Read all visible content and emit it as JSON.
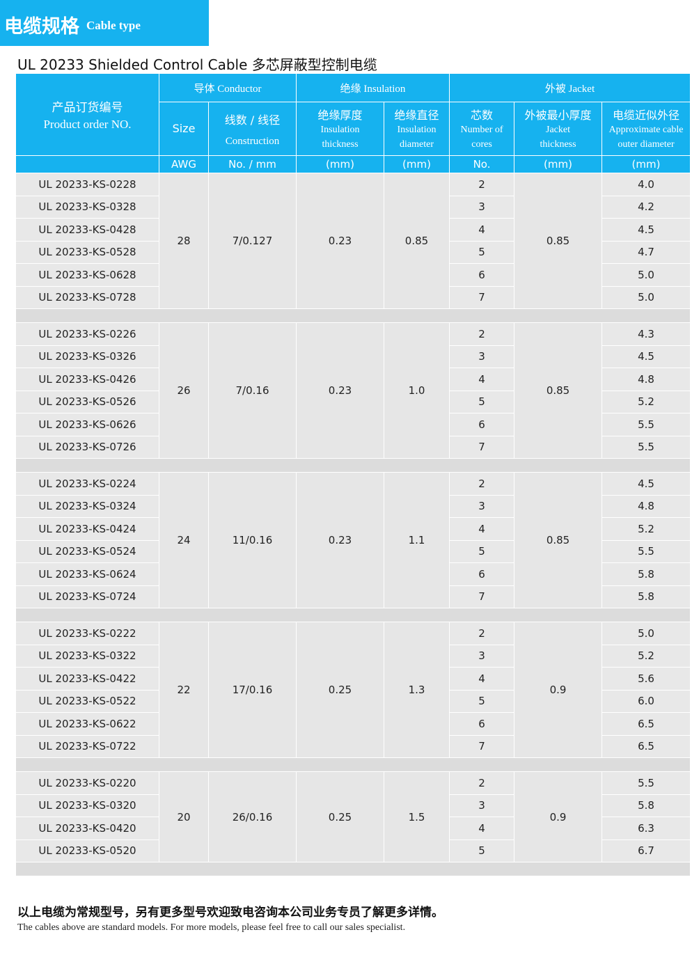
{
  "header": {
    "title_cn": "电缆规格",
    "title_en": "Cable type"
  },
  "table_title": "UL 20233 Shielded Control Cable 多芯屏蔽型控制电缆",
  "columns": {
    "product": {
      "cn": "产品订货编号",
      "en": "Product order NO."
    },
    "conductor": {
      "cn": "导体",
      "en": "Conductor"
    },
    "insulation": {
      "cn": "绝缘",
      "en": "Insulation"
    },
    "jacket": {
      "cn": "外被",
      "en": "Jacket"
    },
    "size": {
      "label": "Size",
      "unit": "AWG"
    },
    "construction": {
      "cn": "线数 / 线径",
      "en": "Construction",
      "unit": "No. / mm"
    },
    "ins_thickness": {
      "cn": "绝缘厚度",
      "en1": "Insulation",
      "en2": "thickness",
      "unit": "(mm)"
    },
    "ins_diameter": {
      "cn": "绝缘直径",
      "en1": "Insulation",
      "en2": "diameter",
      "unit": "(mm)"
    },
    "cores": {
      "cn": "芯数",
      "en1": "Number of",
      "en2": "cores",
      "unit": "No."
    },
    "jacket_thickness": {
      "cn": "外被最小厚度",
      "en1": "Jacket",
      "en2": "thickness",
      "unit": "(mm)"
    },
    "outer_diameter": {
      "cn": "电缆近似外径",
      "en1": "Approximate cable",
      "en2": "outer diameter",
      "unit": "(mm)"
    }
  },
  "groups": [
    {
      "size": "28",
      "construction": "7/0.127",
      "ins_thickness": "0.23",
      "ins_diameter": "0.85",
      "jacket": "0.85",
      "rows": [
        {
          "model": "UL 20233-KS-0228",
          "cores": "2",
          "od": "4.0"
        },
        {
          "model": "UL 20233-KS-0328",
          "cores": "3",
          "od": "4.2"
        },
        {
          "model": "UL 20233-KS-0428",
          "cores": "4",
          "od": "4.5"
        },
        {
          "model": "UL 20233-KS-0528",
          "cores": "5",
          "od": "4.7"
        },
        {
          "model": "UL 20233-KS-0628",
          "cores": "6",
          "od": "5.0"
        },
        {
          "model": "UL 20233-KS-0728",
          "cores": "7",
          "od": "5.0"
        }
      ]
    },
    {
      "size": "26",
      "construction": "7/0.16",
      "ins_thickness": "0.23",
      "ins_diameter": "1.0",
      "jacket": "0.85",
      "rows": [
        {
          "model": "UL 20233-KS-0226",
          "cores": "2",
          "od": "4.3"
        },
        {
          "model": "UL 20233-KS-0326",
          "cores": "3",
          "od": "4.5"
        },
        {
          "model": "UL 20233-KS-0426",
          "cores": "4",
          "od": "4.8"
        },
        {
          "model": "UL 20233-KS-0526",
          "cores": "5",
          "od": "5.2"
        },
        {
          "model": "UL 20233-KS-0626",
          "cores": "6",
          "od": "5.5"
        },
        {
          "model": "UL 20233-KS-0726",
          "cores": "7",
          "od": "5.5"
        }
      ]
    },
    {
      "size": "24",
      "construction": "11/0.16",
      "ins_thickness": "0.23",
      "ins_diameter": "1.1",
      "jacket": "0.85",
      "rows": [
        {
          "model": "UL 20233-KS-0224",
          "cores": "2",
          "od": "4.5"
        },
        {
          "model": "UL 20233-KS-0324",
          "cores": "3",
          "od": "4.8"
        },
        {
          "model": "UL 20233-KS-0424",
          "cores": "4",
          "od": "5.2"
        },
        {
          "model": "UL 20233-KS-0524",
          "cores": "5",
          "od": "5.5"
        },
        {
          "model": "UL 20233-KS-0624",
          "cores": "6",
          "od": "5.8"
        },
        {
          "model": "UL 20233-KS-0724",
          "cores": "7",
          "od": "5.8"
        }
      ]
    },
    {
      "size": "22",
      "construction": "17/0.16",
      "ins_thickness": "0.25",
      "ins_diameter": "1.3",
      "jacket": "0.9",
      "rows": [
        {
          "model": "UL 20233-KS-0222",
          "cores": "2",
          "od": "5.0"
        },
        {
          "model": "UL 20233-KS-0322",
          "cores": "3",
          "od": "5.2"
        },
        {
          "model": "UL 20233-KS-0422",
          "cores": "4",
          "od": "5.6"
        },
        {
          "model": "UL 20233-KS-0522",
          "cores": "5",
          "od": "6.0"
        },
        {
          "model": "UL 20233-KS-0622",
          "cores": "6",
          "od": "6.5"
        },
        {
          "model": "UL 20233-KS-0722",
          "cores": "7",
          "od": "6.5"
        }
      ]
    },
    {
      "size": "20",
      "construction": "26/0.16",
      "ins_thickness": "0.25",
      "ins_diameter": "1.5",
      "jacket": "0.9",
      "rows": [
        {
          "model": "UL 20233-KS-0220",
          "cores": "2",
          "od": "5.5"
        },
        {
          "model": "UL 20233-KS-0320",
          "cores": "3",
          "od": "5.8"
        },
        {
          "model": "UL 20233-KS-0420",
          "cores": "4",
          "od": "6.3"
        },
        {
          "model": "UL 20233-KS-0520",
          "cores": "5",
          "od": "6.7"
        }
      ]
    }
  ],
  "footer": {
    "note_cn": "以上电缆为常规型号，另有更多型号欢迎致电咨询本公司业务专员了解更多详情。",
    "note_en": "The cables above are standard models. For more models, please feel free to call our sales specialist."
  },
  "colors": {
    "header_blue": "#16b2ef",
    "row_gray": "#e8e8e8",
    "separator_gray": "#dcdcdc"
  }
}
